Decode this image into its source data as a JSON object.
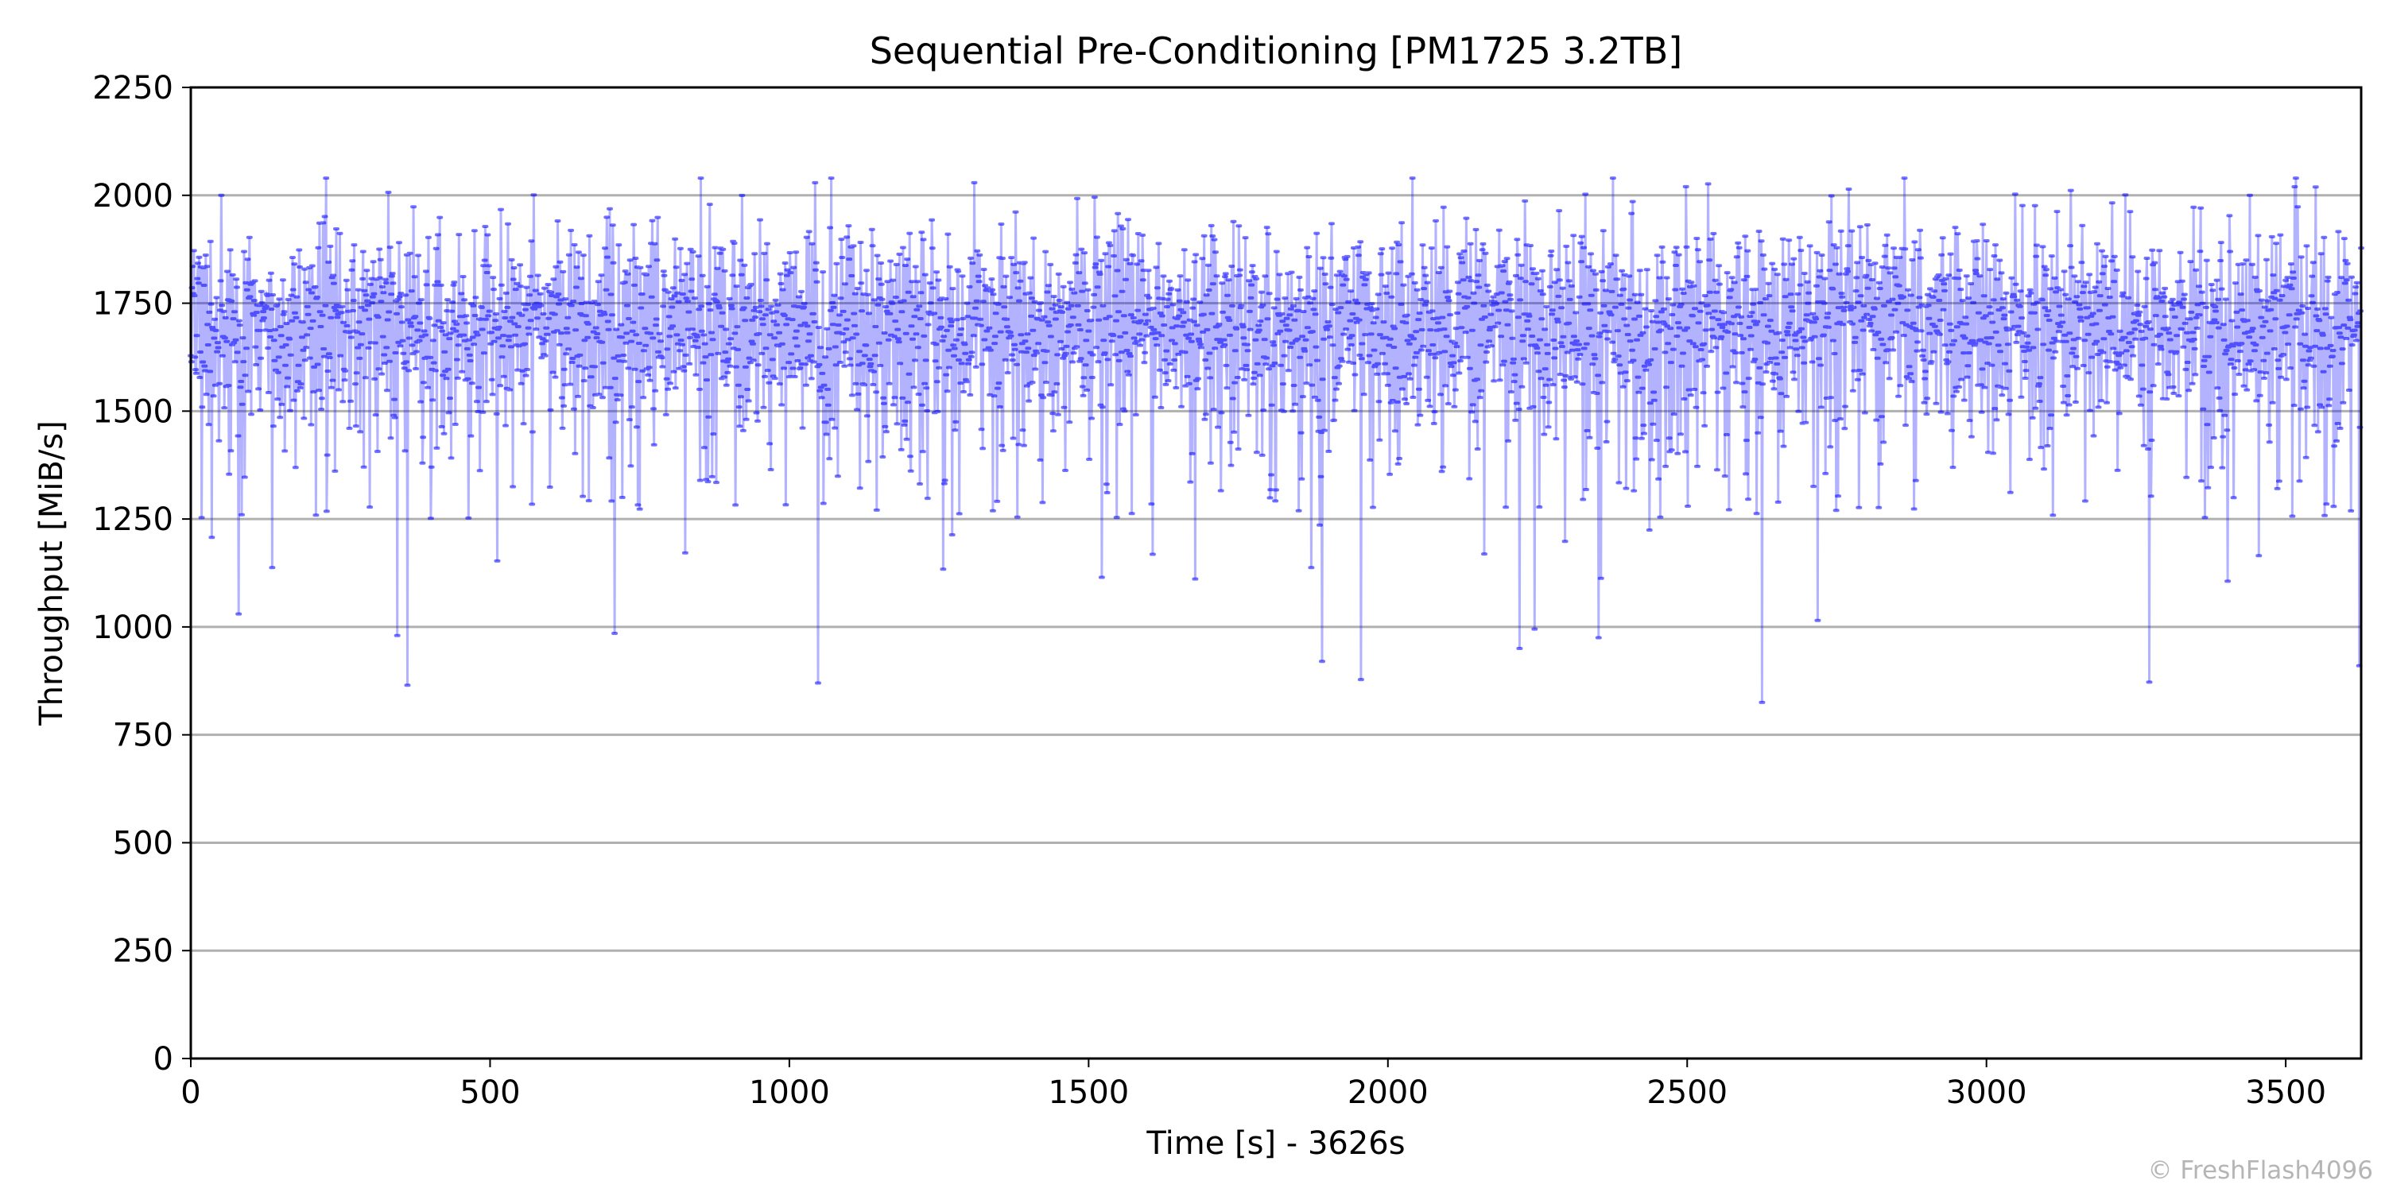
{
  "chart_data": {
    "type": "line",
    "title": "Sequential Pre-Conditioning [PM1725 3.2TB]",
    "xlabel": "Time [s] - 3626s",
    "ylabel": "Throughput [MiB/s]",
    "xlim": [
      0,
      3626
    ],
    "ylim": [
      0,
      2250
    ],
    "xticks": [
      0,
      500,
      1000,
      1500,
      2000,
      2500,
      3000,
      3500
    ],
    "yticks": [
      0,
      250,
      500,
      750,
      1000,
      1250,
      1500,
      1750,
      2000,
      2250
    ],
    "grid": "horizontal",
    "legend": "none",
    "series": [
      {
        "color": "#0000ff",
        "typical_range": [
          1500,
          1950
        ],
        "center_band": 1700,
        "max": 2040,
        "sample_interval_s": 1,
        "notable_dips": [
          {
            "x": 80,
            "y": 1030
          },
          {
            "x": 345,
            "y": 980
          },
          {
            "x": 362,
            "y": 865
          },
          {
            "x": 708,
            "y": 985
          },
          {
            "x": 1048,
            "y": 870
          },
          {
            "x": 1890,
            "y": 920
          },
          {
            "x": 1955,
            "y": 878
          },
          {
            "x": 2220,
            "y": 950
          },
          {
            "x": 2245,
            "y": 995
          },
          {
            "x": 2352,
            "y": 975
          },
          {
            "x": 2625,
            "y": 825
          },
          {
            "x": 2718,
            "y": 1015
          },
          {
            "x": 3272,
            "y": 872
          },
          {
            "x": 3623,
            "y": 910
          }
        ]
      }
    ]
  },
  "credit": "© FreshFlash4096"
}
